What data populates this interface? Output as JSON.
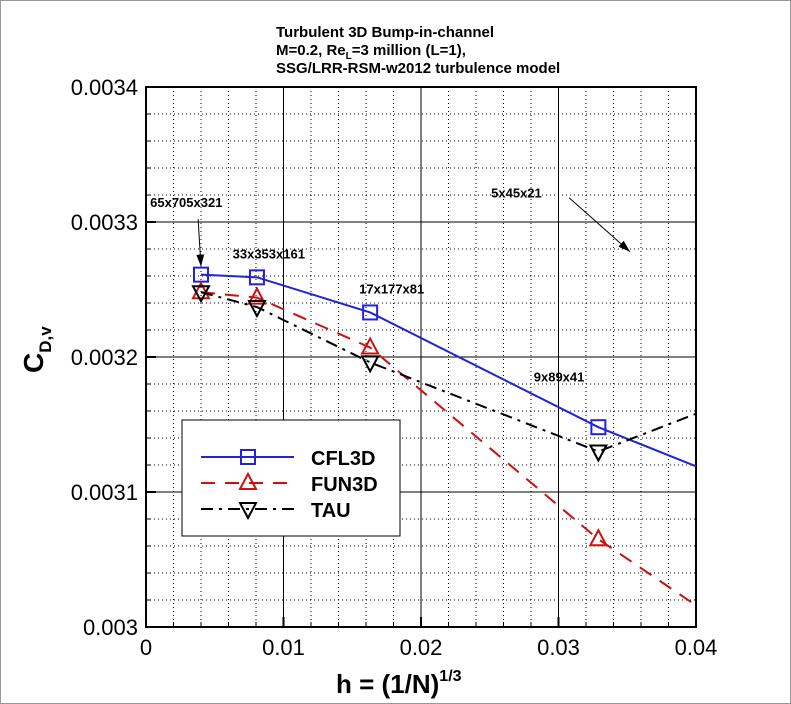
{
  "chart_data": {
    "type": "line",
    "title_lines": [
      "Turbulent 3D Bump-in-channel",
      "M=0.2, Re",
      "=3 million (L=1),",
      "SSG/LRR-RSM-w2012 turbulence model"
    ],
    "title_subscript": "L",
    "xlabel": "h = (1/N)",
    "xlabel_superscript": "1/3",
    "ylabel": "C",
    "ylabel_subscript": "D,v",
    "xlim": [
      0,
      0.04
    ],
    "ylim": [
      0.003,
      0.0034
    ],
    "xticks": [
      "0",
      "0.01",
      "0.02",
      "0.03",
      "0.04"
    ],
    "xtick_values": [
      0,
      0.01,
      0.02,
      0.03,
      0.04
    ],
    "yticks": [
      "0.003",
      "0.0031",
      "0.0032",
      "0.0033",
      "0.0034"
    ],
    "ytick_values": [
      0.003,
      0.0031,
      0.0032,
      0.0033,
      0.0034
    ],
    "grid": true,
    "legend_placement": "lower-left",
    "series": [
      {
        "name": "CFL3D",
        "color": "#2222dd",
        "dash": "solid",
        "marker": "square",
        "x": [
          0.004,
          0.00807,
          0.0163,
          0.0329
        ],
        "y": [
          0.003261,
          0.003259,
          0.003233,
          0.003148
        ],
        "line_extension": {
          "x": 0.04,
          "y": 0.003119
        }
      },
      {
        "name": "FUN3D",
        "color": "#cc1111",
        "dash": "dashed",
        "marker": "triangle-up",
        "x": [
          0.004,
          0.00807,
          0.0163,
          0.0329
        ],
        "y": [
          0.003248,
          0.003244,
          0.003207,
          0.003065
        ],
        "line_extension": {
          "x": 0.04,
          "y": 0.003016
        }
      },
      {
        "name": "TAU",
        "color": "#000000",
        "dash": "dash-dot",
        "marker": "triangle-down",
        "x": [
          0.004,
          0.00807,
          0.0163,
          0.0329
        ],
        "y": [
          0.003248,
          0.003237,
          0.003196,
          0.00313
        ],
        "line_extension": {
          "x": 0.04,
          "y": 0.003158
        }
      }
    ],
    "annotations": [
      {
        "text": "65x705x321",
        "x": 0.0003,
        "y": 0.003311,
        "arrow_to": {
          "x": 0.004,
          "y": 0.003267
        }
      },
      {
        "text": "33x353x161",
        "x": 0.0063,
        "y": 0.003273
      },
      {
        "text": "17x177x81",
        "x": 0.0155,
        "y": 0.003247
      },
      {
        "text": "9x89x41",
        "x": 0.0282,
        "y": 0.003182
      },
      {
        "text": "5x45x21",
        "x": 0.0251,
        "y": 0.003318,
        "arrow_to": {
          "x": 0.0352,
          "y": 0.003278
        }
      }
    ]
  }
}
